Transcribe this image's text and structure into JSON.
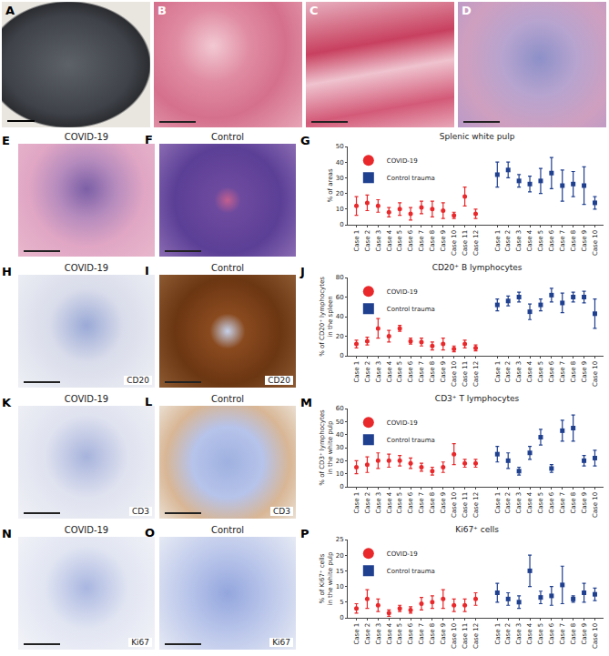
{
  "photo_panels": [
    {
      "letter": "A"
    },
    {
      "letter": "B"
    },
    {
      "letter": "C"
    },
    {
      "letter": "D"
    }
  ],
  "image_rows": [
    {
      "left": {
        "letter": "E",
        "header": "COVID-19"
      },
      "right": {
        "letter": "F",
        "header": "Control"
      }
    },
    {
      "left": {
        "letter": "H",
        "header": "COVID-19",
        "stain": "CD20"
      },
      "right": {
        "letter": "I",
        "header": "Control",
        "stain": "CD20"
      }
    },
    {
      "left": {
        "letter": "K",
        "header": "COVID-19",
        "stain": "CD3"
      },
      "right": {
        "letter": "L",
        "header": "Control",
        "stain": "CD3"
      }
    },
    {
      "left": {
        "letter": "N",
        "header": "COVID-19",
        "stain": "Ki67"
      },
      "right": {
        "letter": "O",
        "header": "Control",
        "stain": "Ki67"
      }
    }
  ],
  "chart_data": [
    {
      "type": "scatter",
      "panel": "G",
      "title": "Splenic white pulp",
      "y_label": [
        "% of areas"
      ],
      "categories": [
        "Case 1",
        "Case 2",
        "Case 3",
        "Case 4",
        "Case 5",
        "Case 6",
        "Case 7",
        "Case 8",
        "Case 9",
        "Case 10",
        "Case 11",
        "Case 12",
        null,
        "Case 1",
        "Case 2",
        "Case 3",
        "Case 4",
        "Case 5",
        "Case 6",
        "Case 7",
        "Case 8",
        "Case 9",
        "Case 10"
      ],
      "series": [
        {
          "name": "COVID-19",
          "color": "#e8282b",
          "marker": "circle",
          "values": [
            12,
            14,
            12,
            8,
            10,
            7,
            11,
            10,
            9,
            6,
            18,
            7,
            null,
            null,
            null,
            null,
            null,
            null,
            null,
            null,
            null,
            null,
            null
          ],
          "errors": [
            6,
            5,
            4,
            3,
            4,
            4,
            4,
            5,
            5,
            2,
            6,
            3,
            null,
            null,
            null,
            null,
            null,
            null,
            null,
            null,
            null,
            null,
            null
          ]
        },
        {
          "name": "Control trauma",
          "color": "#1f3f8f",
          "marker": "square",
          "values": [
            null,
            null,
            null,
            null,
            null,
            null,
            null,
            null,
            null,
            null,
            null,
            null,
            null,
            32,
            35,
            28,
            26,
            28,
            33,
            25,
            26,
            25,
            14
          ],
          "errors": [
            null,
            null,
            null,
            null,
            null,
            null,
            null,
            null,
            null,
            null,
            null,
            null,
            null,
            8,
            5,
            4,
            5,
            8,
            10,
            10,
            8,
            12,
            4
          ]
        }
      ],
      "ylim": [
        0,
        50
      ],
      "yticks": [
        0,
        10,
        20,
        30,
        40,
        50
      ],
      "legend": "top left",
      "grid": false
    },
    {
      "type": "scatter",
      "panel": "J",
      "title": "CD20⁺ B lymphocytes",
      "y_label": [
        "% of CD20⁺ lymphocytes",
        "in the spleen"
      ],
      "categories": [
        "Case 1",
        "Case 2",
        "Case 3",
        "Case 4",
        "Case 5",
        "Case 6",
        "Case 7",
        "Case 8",
        "Case 9",
        "Case 10",
        "Case 11",
        "Case 12",
        null,
        "Case 1",
        "Case 2",
        "Case 3",
        "Case 4",
        "Case 5",
        "Case 6",
        "Case 7",
        "Case 8",
        "Case 9",
        "Case 10"
      ],
      "series": [
        {
          "name": "COVID-19",
          "color": "#e8282b",
          "marker": "circle",
          "values": [
            12,
            15,
            28,
            20,
            28,
            15,
            14,
            10,
            12,
            7,
            12,
            8,
            null,
            null,
            null,
            null,
            null,
            null,
            null,
            null,
            null,
            null,
            null
          ],
          "errors": [
            4,
            4,
            10,
            6,
            3,
            3,
            4,
            4,
            6,
            3,
            4,
            3,
            null,
            null,
            null,
            null,
            null,
            null,
            null,
            null,
            null,
            null,
            null
          ]
        },
        {
          "name": "Control trauma",
          "color": "#1f3f8f",
          "marker": "square",
          "values": [
            null,
            null,
            null,
            null,
            null,
            null,
            null,
            null,
            null,
            null,
            null,
            null,
            null,
            52,
            56,
            60,
            45,
            52,
            62,
            54,
            60,
            60,
            43
          ],
          "errors": [
            null,
            null,
            null,
            null,
            null,
            null,
            null,
            null,
            null,
            null,
            null,
            null,
            null,
            6,
            5,
            5,
            8,
            6,
            7,
            10,
            5,
            6,
            15
          ]
        }
      ],
      "ylim": [
        0,
        80
      ],
      "yticks": [
        0,
        20,
        40,
        60,
        80
      ],
      "legend": "top left",
      "grid": false
    },
    {
      "type": "scatter",
      "panel": "M",
      "title": "CD3⁺ T lymphocytes",
      "y_label": [
        "% of CD3⁺ lymphocytes",
        "in the white pulp"
      ],
      "categories": [
        "Case 1",
        "Case 2",
        "Case 3",
        "Case 4",
        "Case 5",
        "Case 6",
        "Case 7",
        "Case 8",
        "Case 9",
        "Case 10",
        "Case 11",
        "Case 12",
        null,
        "Case 1",
        "Case 2",
        "Case 3",
        "Case 4",
        "Case 5",
        "Case 6",
        "Case 7",
        "Case 8",
        "Case 9",
        "Case 10"
      ],
      "series": [
        {
          "name": "COVID-19",
          "color": "#e8282b",
          "marker": "circle",
          "values": [
            15,
            17,
            20,
            20,
            20,
            18,
            15,
            12,
            15,
            25,
            18,
            18,
            null,
            null,
            null,
            null,
            null,
            null,
            null,
            null,
            null,
            null,
            null
          ],
          "errors": [
            5,
            6,
            6,
            5,
            4,
            4,
            3,
            3,
            4,
            8,
            3,
            3,
            null,
            null,
            null,
            null,
            null,
            null,
            null,
            null,
            null,
            null,
            null
          ]
        },
        {
          "name": "Control trauma",
          "color": "#1f3f8f",
          "marker": "square",
          "values": [
            null,
            null,
            null,
            null,
            null,
            null,
            null,
            null,
            null,
            null,
            null,
            null,
            null,
            25,
            20,
            12,
            26,
            38,
            14,
            43,
            45,
            20,
            22
          ],
          "errors": [
            null,
            null,
            null,
            null,
            null,
            null,
            null,
            null,
            null,
            null,
            null,
            null,
            null,
            6,
            6,
            3,
            5,
            6,
            3,
            8,
            10,
            4,
            6
          ]
        }
      ],
      "ylim": [
        0,
        60
      ],
      "yticks": [
        0,
        10,
        20,
        30,
        40,
        50,
        60
      ],
      "legend": "top left",
      "grid": false
    },
    {
      "type": "scatter",
      "panel": "P",
      "title": "Ki67⁺ cells",
      "y_label": [
        "% of Ki67⁺ cells",
        "in the white pulp"
      ],
      "categories": [
        "Case 1",
        "Case 2",
        "Case 3",
        "Case 4",
        "Case 5",
        "Case 6",
        "Case 7",
        "Case 8",
        "Case 9",
        "Case 10",
        "Case 11",
        "Case 12",
        null,
        "Case 1",
        "Case 2",
        "Case 3",
        "Case 4",
        "Case 5",
        "Case 6",
        "Case 7",
        "Case 8",
        "Case 9",
        "Case 10"
      ],
      "series": [
        {
          "name": "COVID-19",
          "color": "#e8282b",
          "marker": "circle",
          "values": [
            3,
            6,
            4,
            1.5,
            3,
            2.5,
            4.5,
            5,
            6,
            4,
            4,
            6,
            null,
            null,
            null,
            null,
            null,
            null,
            null,
            null,
            null,
            null,
            null
          ],
          "errors": [
            1.5,
            3,
            2,
            1,
            1,
            1,
            2,
            2,
            3,
            2,
            2,
            2,
            null,
            null,
            null,
            null,
            null,
            null,
            null,
            null,
            null,
            null,
            null
          ]
        },
        {
          "name": "Control trauma",
          "color": "#1f3f8f",
          "marker": "square",
          "values": [
            null,
            null,
            null,
            null,
            null,
            null,
            null,
            null,
            null,
            null,
            null,
            null,
            null,
            8,
            6,
            5,
            15,
            6.5,
            7,
            10.5,
            6,
            8,
            7.5
          ],
          "errors": [
            null,
            null,
            null,
            null,
            null,
            null,
            null,
            null,
            null,
            null,
            null,
            null,
            null,
            3,
            2,
            2,
            5,
            2,
            3,
            6,
            1,
            3,
            2
          ]
        }
      ],
      "ylim": [
        0,
        25
      ],
      "yticks": [
        0,
        5,
        10,
        15,
        20,
        25
      ],
      "legend": "top left",
      "grid": false
    }
  ]
}
